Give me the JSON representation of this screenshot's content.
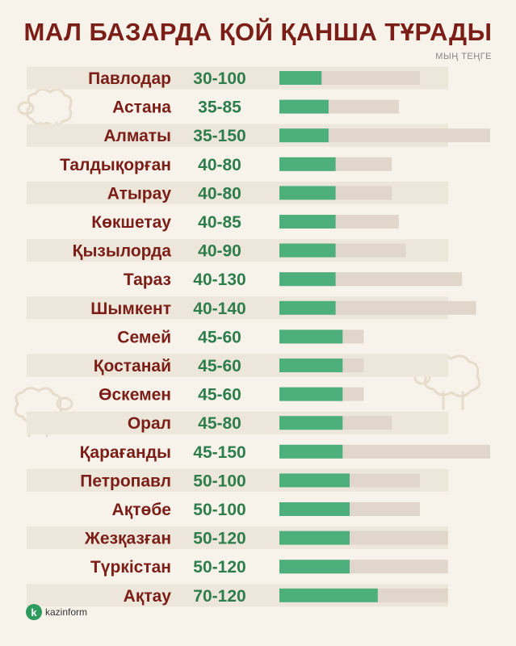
{
  "header": {
    "title": "МАЛ БАЗАРДА ҚОЙ ҚАНША ТҰРАДЫ",
    "subtitle": "МЫҢ ТЕҢГЕ"
  },
  "brand": {
    "name": "kazinform",
    "icon_letter": "k",
    "icon_color": "#2e9a5e"
  },
  "colors": {
    "title": "#7a1e17",
    "range_text": "#2e7d4c",
    "bar_min": "#4daf7c",
    "bar_max": "#e0d6cc",
    "stripe": "#ede6da",
    "background": "#f7f3ea"
  },
  "chart_data": {
    "type": "bar",
    "title": "МАЛ БАЗАРДА ҚОЙ ҚАНША ТҰРАДЫ",
    "unit": "МЫҢ ТЕҢГЕ",
    "xlim": [
      0,
      150
    ],
    "categories": [
      "Павлодар",
      "Астана",
      "Алматы",
      "Талдықорған",
      "Атырау",
      "Көкшетау",
      "Қызылорда",
      "Тараз",
      "Шымкент",
      "Семей",
      "Қостанай",
      "Өскемен",
      "Орал",
      "Қарағанды",
      "Петропавл",
      "Ақтөбе",
      "Жезқазған",
      "Түркістан",
      "Ақтау"
    ],
    "labels": [
      "30-100",
      "35-85",
      "35-150",
      "40-80",
      "40-80",
      "40-85",
      "40-90",
      "40-130",
      "40-140",
      "45-60",
      "45-60",
      "45-60",
      "45-80",
      "45-150",
      "50-100",
      "50-100",
      "50-120",
      "50-120",
      "70-120"
    ],
    "series": [
      {
        "values": [
          30,
          35,
          35,
          40,
          40,
          40,
          40,
          40,
          40,
          45,
          45,
          45,
          45,
          45,
          50,
          50,
          50,
          50,
          70
        ]
      },
      {
        "values": [
          100,
          85,
          150,
          80,
          80,
          85,
          90,
          130,
          140,
          60,
          60,
          60,
          80,
          150,
          100,
          100,
          120,
          120,
          120
        ]
      }
    ]
  }
}
